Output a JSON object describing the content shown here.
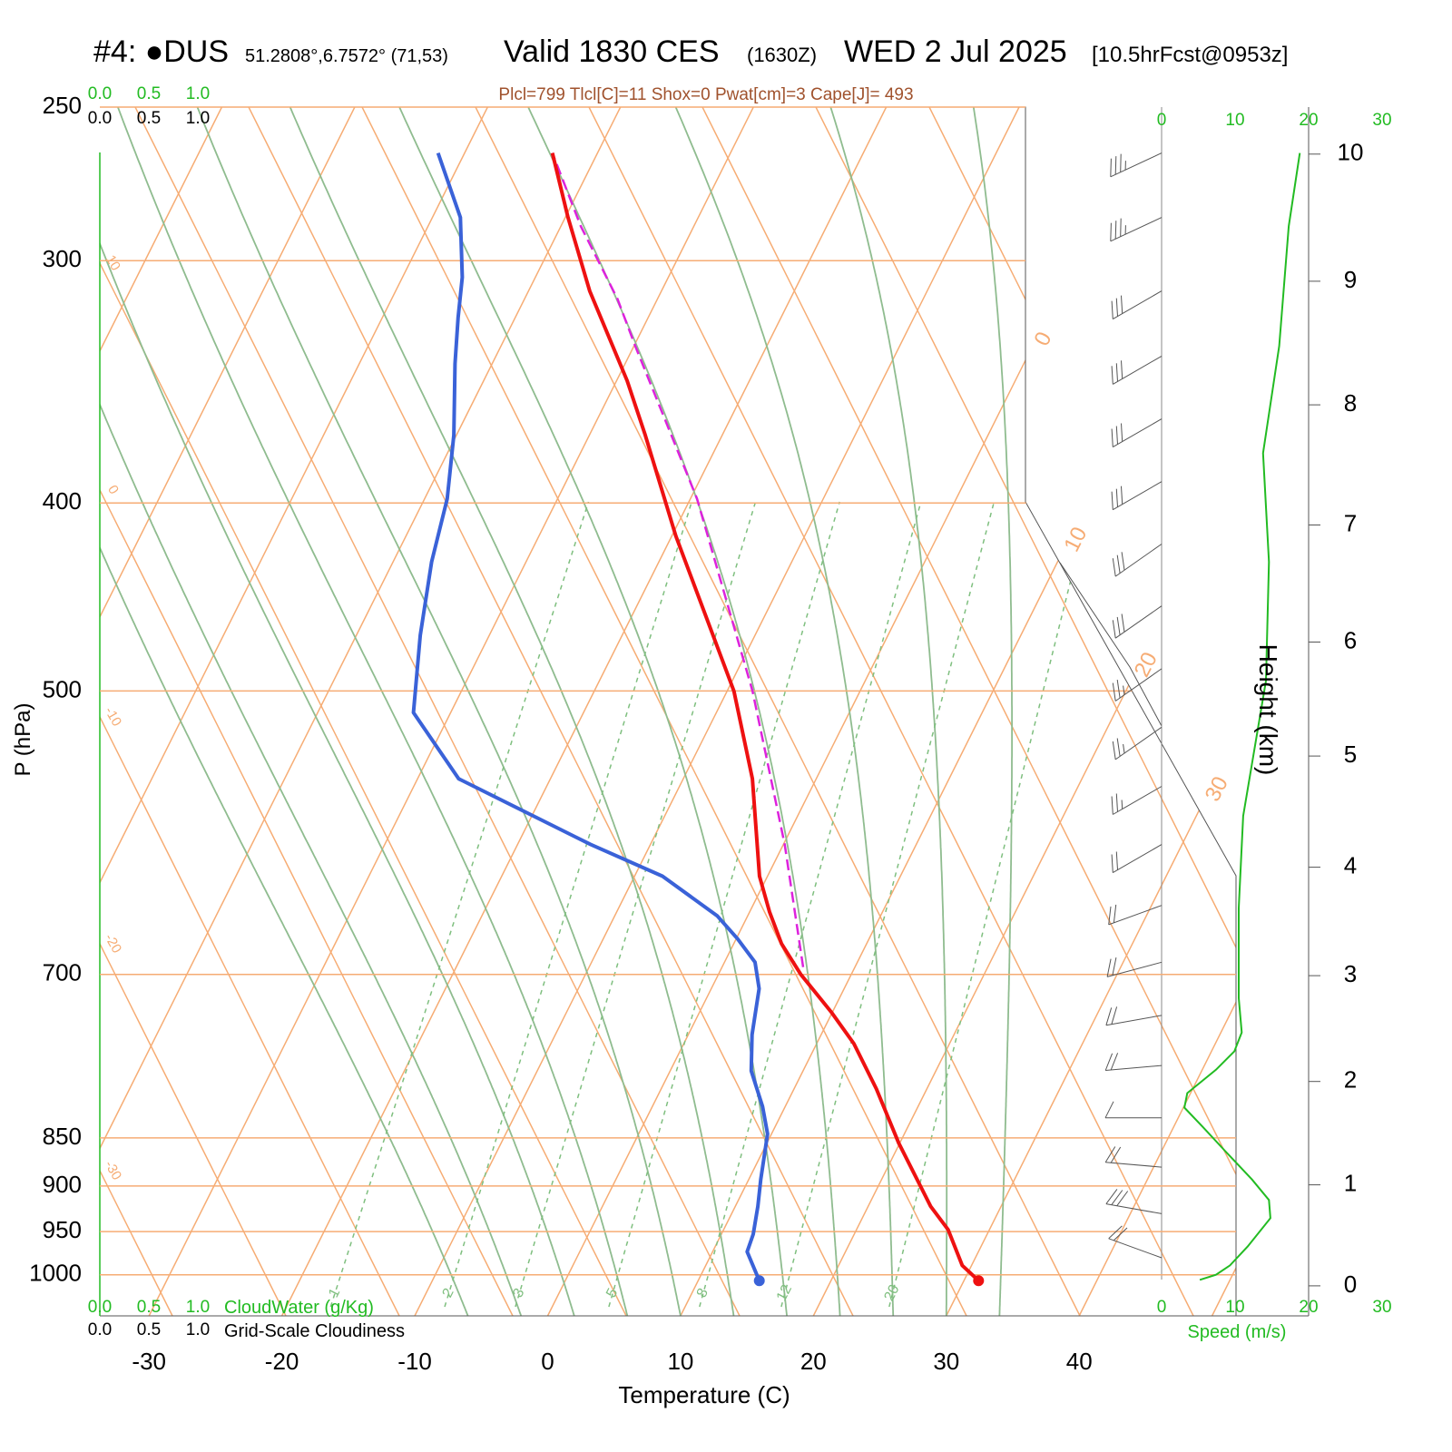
{
  "chart_data": {
    "type": "skewt",
    "station": "#4: ●DUS",
    "location": "51.2808°,6.7572° (71,53)",
    "valid": "Valid 1830 CES",
    "utc": "(1630Z)",
    "date": "WED 2 Jul 2025",
    "forecast": "[10.5hrFcst@0953z]",
    "subtitle": "Plcl=799 Tlcl[C]=11 Shox=0 Pwat[cm]=3 Cape[J]= 493",
    "x_label": "Temperature (C)",
    "y_label": "P (hPa)",
    "xlim": [
      -33.7,
      51.8
    ],
    "xticks": [
      -30,
      -20,
      -10,
      0,
      10,
      20,
      30,
      40
    ],
    "ylim": [
      250,
      1050
    ],
    "yticks": [
      250,
      300,
      400,
      500,
      700,
      850,
      900,
      950,
      1000
    ],
    "log_y": true,
    "isotherm_labels": [
      0,
      10,
      20,
      30
    ],
    "slant_line_labels": [
      10,
      0,
      -10,
      -20,
      -30
    ],
    "mixing_ratio": {
      "values": [
        1,
        2,
        3,
        5,
        8,
        12,
        20
      ],
      "color": "#7fbf7f"
    },
    "moist_adiabats": {
      "values": [
        -6,
        -2,
        2,
        6,
        10,
        14,
        18,
        22,
        26,
        30,
        34
      ],
      "color": "#8fbc8f"
    },
    "temperature": {
      "color": "#ee1111",
      "pressure": [
        1007,
        989,
        948,
        922,
        855,
        802,
        760,
        732,
        700,
        675,
        650,
        623,
        555,
        500,
        416,
        369,
        346,
        311,
        285,
        264
      ],
      "values": [
        31.1,
        29.3,
        26.9,
        24.7,
        19.9,
        16.2,
        12.8,
        9.9,
        6.2,
        3.6,
        1.5,
        -0.6,
        -4.8,
        -9.5,
        -19.7,
        -25.8,
        -29.2,
        -35.4,
        -39.8,
        -43.4
      ]
    },
    "dewpoint": {
      "color": "#3a62d8",
      "pressure": [
        1007,
        973,
        953,
        922,
        893,
        846,
        819,
        785,
        752,
        712,
        690,
        671,
        653,
        623,
        600,
        555,
        513,
        468,
        429,
        398,
        369,
        339,
        321,
        306,
        285,
        264
      ],
      "values": [
        14.6,
        12.6,
        12.4,
        11.7,
        10.9,
        9.7,
        8.3,
        6.1,
        4.8,
        3.6,
        2.3,
        0.1,
        -2.3,
        -7.9,
        -14.5,
        -26.9,
        -32.8,
        -35.2,
        -37.1,
        -38.3,
        -40.2,
        -42.8,
        -44.3,
        -45.5,
        -47.9,
        -52.0
      ]
    },
    "parcel": {
      "color": "#dd22dd",
      "dashed": true,
      "pressure": [
        694,
        600,
        500,
        398,
        332,
        314,
        288,
        264
      ],
      "values": [
        6.1,
        0.1,
        -8.1,
        -19.5,
        -29.9,
        -33.0,
        -38.5,
        -43.4
      ]
    },
    "wind_speed": {
      "label": "Speed (m/s)",
      "color": "#22bb22",
      "xlim": [
        0,
        30
      ],
      "xticks": [
        0,
        10,
        20,
        30
      ],
      "pressure": [
        1006,
        1000,
        989,
        967,
        935,
        915,
        893,
        863,
        839,
        820,
        806,
        784,
        767,
        750,
        720,
        647,
        580,
        494,
        429,
        377,
        332,
        288,
        264
      ],
      "values": [
        5.2,
        7.4,
        9.3,
        11.7,
        14.8,
        14.6,
        12.3,
        8.6,
        5.6,
        3.1,
        3.5,
        7.4,
        9.9,
        10.9,
        10.5,
        10.5,
        11.1,
        14.2,
        14.6,
        13.8,
        16.0,
        17.3,
        18.8
      ]
    },
    "wind_barbs": {
      "color": "#555555",
      "pressure": [
        264,
        285,
        311,
        336,
        362,
        390,
        420,
        452,
        487,
        522,
        560,
        600,
        645,
        690,
        735,
        780,
        830,
        880,
        930,
        980
      ],
      "direction": [
        245,
        245,
        240,
        240,
        240,
        240,
        235,
        235,
        235,
        235,
        240,
        240,
        250,
        255,
        260,
        265,
        270,
        275,
        280,
        290
      ],
      "speed": [
        35,
        35,
        30,
        30,
        30,
        30,
        30,
        30,
        25,
        25,
        25,
        20,
        20,
        20,
        20,
        20,
        10,
        20,
        30,
        20
      ]
    },
    "height": {
      "label": "Height (km)",
      "ticks": [
        0,
        1,
        2,
        3,
        4,
        5,
        6,
        7,
        8,
        9,
        10
      ]
    },
    "cloud_water": {
      "label": "CloudWater (g/Kg)",
      "color": "#22bb22",
      "ticks": [
        {
          "value": 0,
          "label": "0.0"
        },
        {
          "value": 0.5,
          "label": "0.5"
        },
        {
          "value": 1,
          "label": "1.0"
        }
      ]
    },
    "cloudiness": {
      "label": "Grid-Scale Cloudiness",
      "color": "#000000",
      "ticks": [
        {
          "value": 0,
          "label": "0.0"
        },
        {
          "value": 0.5,
          "label": "0.5"
        },
        {
          "value": 1,
          "label": "1.0"
        }
      ]
    }
  }
}
